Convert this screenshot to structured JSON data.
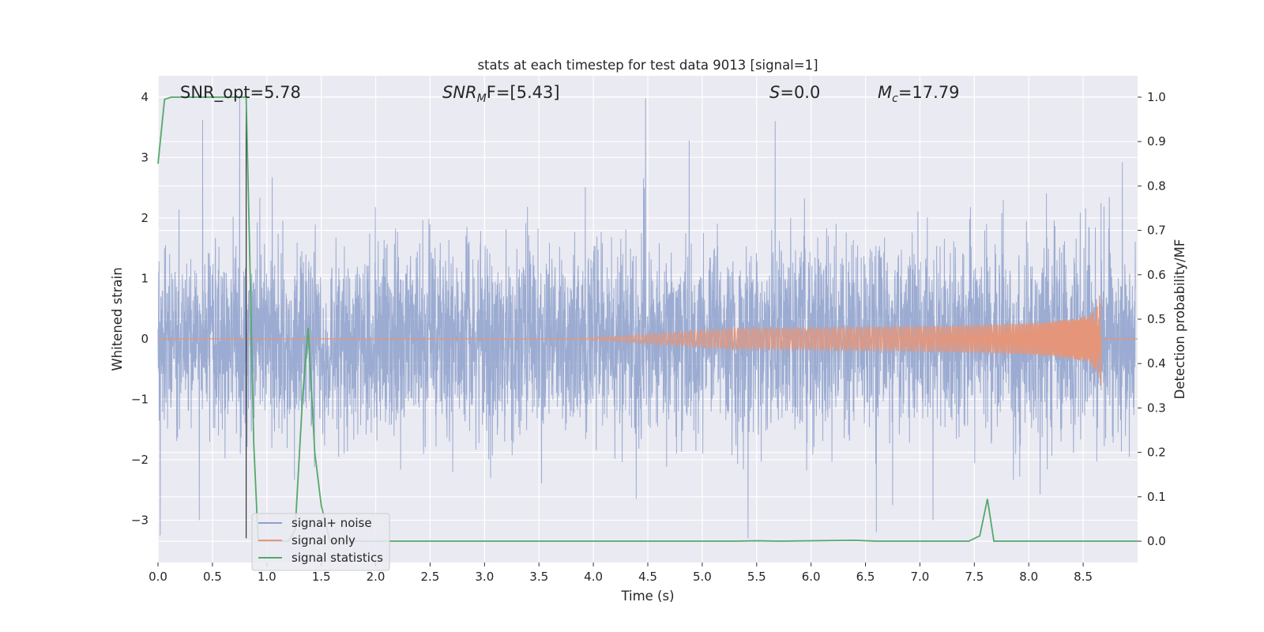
{
  "chart_data": {
    "type": "line",
    "title": "stats at each timestep for test data 9013 [signal=1]",
    "xlabel": "Time (s)",
    "ylabel_left": "Whitened strain",
    "ylabel_right": "Detection probability/MF",
    "xlim": [
      0.0,
      9.0
    ],
    "ylim_left": [
      -3.7,
      4.35
    ],
    "ylim_right": [
      -0.048,
      1.048
    ],
    "x_ticks": [
      0.0,
      0.5,
      1.0,
      1.5,
      2.0,
      2.5,
      3.0,
      3.5,
      4.0,
      4.5,
      5.0,
      5.5,
      6.0,
      6.5,
      7.0,
      7.5,
      8.0,
      8.5
    ],
    "x_tick_labels": [
      "0.0",
      "0.5",
      "1.0",
      "1.5",
      "2.0",
      "2.5",
      "3.0",
      "3.5",
      "4.0",
      "4.5",
      "5.0",
      "5.5",
      "6.0",
      "6.5",
      "7.0",
      "7.5",
      "8.0",
      "8.5"
    ],
    "y_left_ticks": [
      -3,
      -2,
      -1,
      0,
      1,
      2,
      3,
      4
    ],
    "y_left_tick_labels": [
      "−3",
      "−2",
      "−1",
      "0",
      "1",
      "2",
      "3",
      "4"
    ],
    "y_right_ticks": [
      0.0,
      0.1,
      0.2,
      0.3,
      0.4,
      0.5,
      0.6,
      0.7,
      0.8,
      0.9,
      1.0
    ],
    "y_right_tick_labels": [
      "0.0",
      "0.1",
      "0.2",
      "0.3",
      "0.4",
      "0.5",
      "0.6",
      "0.7",
      "0.8",
      "0.9",
      "1.0"
    ],
    "grid": true,
    "legend_position": "lower-left",
    "annotations": {
      "snr_opt": "SNR_opt=5.78",
      "snr_mf_prefix": "SNR",
      "snr_mf_sub": "M",
      "snr_mf_suffix": "F=[5.43]",
      "s_var": "S",
      "s_value": "=0.0",
      "mc_var": "M",
      "mc_sub": "c",
      "mc_value": "=17.79"
    },
    "marker_line_x": 0.81,
    "series": [
      {
        "name": "signal+ noise",
        "axis": "left",
        "color": "#8da0cb",
        "noise_sigma": 0.78,
        "extremes": [
          [
            0.41,
            3.62
          ],
          [
            0.75,
            3.98
          ],
          [
            4.48,
            3.98
          ],
          [
            4.88,
            3.28
          ],
          [
            5.67,
            3.6
          ],
          [
            8.86,
            2.92
          ],
          [
            0.02,
            -3.25
          ],
          [
            0.38,
            -3.0
          ],
          [
            5.42,
            -3.3
          ],
          [
            6.6,
            -3.2
          ],
          [
            7.12,
            -3.0
          ]
        ]
      },
      {
        "name": "signal only",
        "axis": "left",
        "color": "#e5967a",
        "t_merge": 8.66,
        "peak_amplitude": 1.02
      },
      {
        "name": "signal statistics",
        "axis": "right",
        "color": "#55a868",
        "points": [
          [
            0.0,
            0.85
          ],
          [
            0.06,
            0.995
          ],
          [
            0.12,
            1.0
          ],
          [
            0.78,
            1.0
          ],
          [
            0.81,
            1.0
          ],
          [
            0.84,
            0.68
          ],
          [
            0.88,
            0.22
          ],
          [
            0.92,
            0.0
          ],
          [
            1.0,
            0.0
          ],
          [
            1.2,
            0.0
          ],
          [
            1.26,
            0.025
          ],
          [
            1.33,
            0.33
          ],
          [
            1.38,
            0.48
          ],
          [
            1.44,
            0.2
          ],
          [
            1.5,
            0.08
          ],
          [
            1.58,
            0.0
          ],
          [
            5.3,
            0.0
          ],
          [
            5.5,
            0.001
          ],
          [
            5.7,
            0.0
          ],
          [
            6.4,
            0.002
          ],
          [
            6.6,
            0.0
          ],
          [
            7.45,
            0.0
          ],
          [
            7.55,
            0.012
          ],
          [
            7.62,
            0.095
          ],
          [
            7.68,
            0.0
          ],
          [
            9.0,
            0.0
          ]
        ]
      }
    ]
  }
}
